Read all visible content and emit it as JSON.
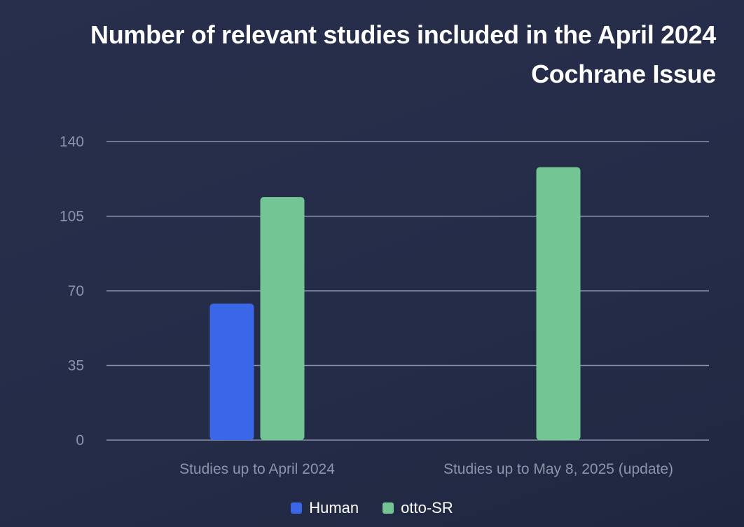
{
  "title_line1": "Number of relevant studies included in the April 2024",
  "title_line2": "Cochrane Issue",
  "colors": {
    "human": "#3a66e8",
    "otto_sr": "#73c694",
    "grid": "#8a92aa",
    "tick_text": "#8d94aa"
  },
  "chart_data": {
    "type": "bar",
    "title": "Number of relevant studies included in the April 2024 Cochrane Issue",
    "categories": [
      "Studies up to April 2024",
      "Studies up to May 8, 2025 (update)"
    ],
    "series": [
      {
        "name": "Human",
        "values": [
          64,
          null
        ]
      },
      {
        "name": "otto-SR",
        "values": [
          114,
          128
        ]
      }
    ],
    "ylim": [
      0,
      140
    ],
    "yticks": [
      0,
      35,
      70,
      105,
      140
    ],
    "grid": true,
    "legend_position": "bottom"
  }
}
